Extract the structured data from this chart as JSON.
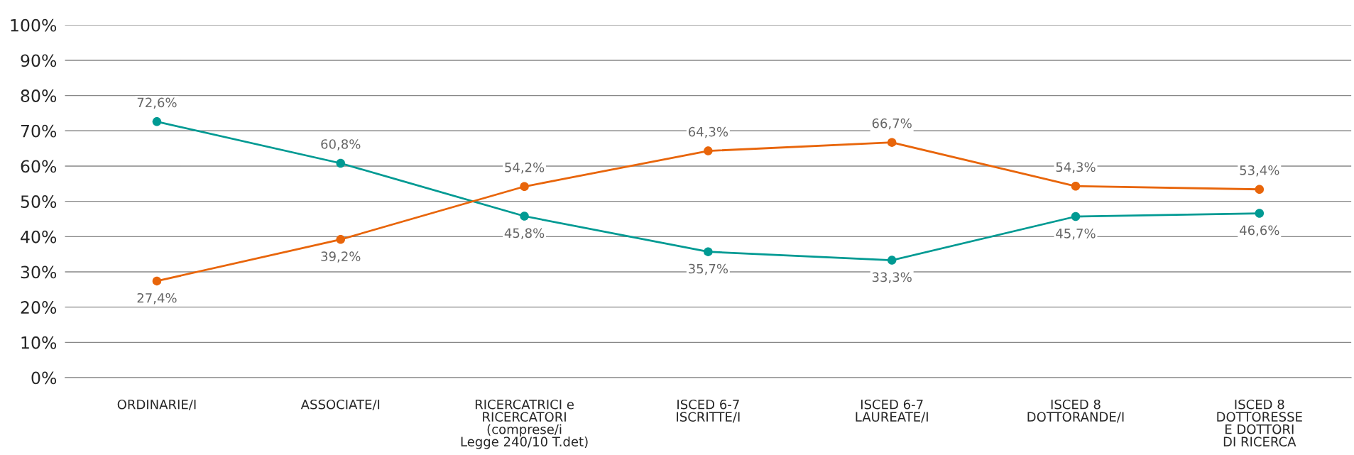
{
  "chart_data": {
    "type": "line",
    "categories": [
      "ORDINARIE/I",
      "ASSOCIATE/I",
      "RICERCATRICI e\nRICERCATORI\n(comprese/i\nLegge 240/10 T.det)",
      "ISCED 6-7\nISCRITTE/I",
      "ISCED 6-7\nLAUREATE/I",
      "ISCED 8\nDOTTORANDE/I",
      "ISCED 8\nDOTTORESSE\nE DOTTORI\nDI RICERCA"
    ],
    "series": [
      {
        "color": "#009a93",
        "values": [
          72.6,
          60.8,
          45.8,
          35.7,
          33.3,
          45.7,
          46.6
        ],
        "value_labels": [
          "72,6%",
          "60,8%",
          "45,8%",
          "35,7%",
          "33,3%",
          "45,7%",
          "46,6%"
        ]
      },
      {
        "color": "#e8650a",
        "values": [
          27.4,
          39.2,
          54.2,
          64.3,
          66.7,
          54.3,
          53.4
        ],
        "value_labels": [
          "27,4%",
          "39,2%",
          "54,2%",
          "64,3%",
          "66,7%",
          "54,3%",
          "53,4%"
        ]
      }
    ],
    "ylim": [
      0,
      100
    ],
    "yticks": [
      {
        "value": 0,
        "label": "0%"
      },
      {
        "value": 10,
        "label": "10%"
      },
      {
        "value": 20,
        "label": "20%"
      },
      {
        "value": 30,
        "label": "30%"
      },
      {
        "value": 40,
        "label": "40%"
      },
      {
        "value": 50,
        "label": "50%"
      },
      {
        "value": 60,
        "label": "60%"
      },
      {
        "value": 70,
        "label": "70%"
      },
      {
        "value": 80,
        "label": "80%"
      },
      {
        "value": 90,
        "label": "90%"
      },
      {
        "value": 100,
        "label": "100%"
      }
    ],
    "grid": "y",
    "marker": "circle",
    "line_style": "solid",
    "legend": false
  }
}
